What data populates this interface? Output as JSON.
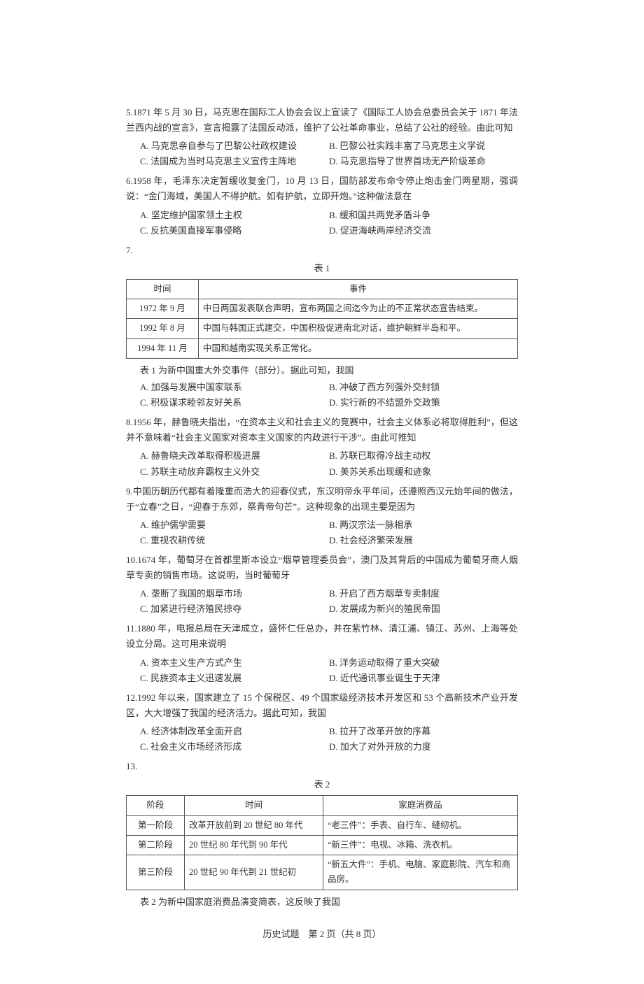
{
  "page": {
    "footer": "历史试题　第 2 页（共 8 页）"
  },
  "questions": [
    {
      "num": "5.",
      "text": "1871 年 5 月 30 日，马克思在国际工人协会会议上宣读了《国际工人协会总委员会关于 1871 年法兰西内战的宣言》，宣言揭露了法国反动派，维护了公社革命事业，总结了公社的经验。由此可知",
      "layout": "two",
      "opts": [
        "A. 马克思亲自参与了巴黎公社政权建设",
        "B. 巴黎公社实践丰富了马克思主义学说",
        "C. 法国成为当时马克思主义宣传主阵地",
        "D. 马克思指导了世界首场无产阶级革命"
      ]
    },
    {
      "num": "6.",
      "text": "1958 年，毛泽东决定暂缓收复金门，10 月 13 日，国防部发布命令停止炮击金门两星期，强调说：“金门海域，美国人不得护航。如有护航，立即开炮。”这种做法意在",
      "layout": "two",
      "opts": [
        "A. 坚定维护国家领土主权",
        "B. 缓和国共两党矛盾斗争",
        "C. 反抗美国直接军事侵略",
        "D. 促进海峡两岸经济交流"
      ]
    },
    {
      "num": "7.",
      "table_caption": "表 1",
      "table_note": "表 1 为新中国重大外交事件（部分）。据此可知，我国",
      "table1": {
        "headers": [
          "时间",
          "事件"
        ],
        "rows": [
          [
            "1972 年 9 月",
            "中日两国发表联合声明，宣布两国之间迄今为止的不正常状态宣告结束。"
          ],
          [
            "1992 年 8 月",
            "中国与韩国正式建交，中国积极促进南北对话，维护朝鲜半岛和平。"
          ],
          [
            "1994 年 11 月",
            "中国和越南实现关系正常化。"
          ]
        ]
      },
      "layout": "two",
      "opts": [
        "A. 加强与发展中国家联系",
        "B. 冲破了西方列强外交封锁",
        "C. 积极谋求睦邻友好关系",
        "D. 实行新的不结盟外交政策"
      ]
    },
    {
      "num": "8.",
      "text": "1956 年，赫鲁晓夫指出，“在资本主义和社会主义的竞赛中，社会主义体系必将取得胜利”，但这并不意味着“社会主义国家对资本主义国家的内政进行干涉”。由此可推知",
      "layout": "two",
      "opts": [
        "A. 赫鲁晓夫改革取得积极进展",
        "B. 苏联已取得冷战主动权",
        "C. 苏联主动放弃霸权主义外交",
        "D. 美苏关系出现缓和迹象"
      ]
    },
    {
      "num": "9.",
      "text": "中国历朝历代都有着隆重而浩大的迎春仪式，东汉明帝永平年间，还遵照西汉元始年间的做法，于“立春”之日，“迎春于东郊，祭青帝句芒”。这种现象的出现主要是因为",
      "layout": "two",
      "opts": [
        "A. 维护儒学需要",
        "B. 两汉宗法一脉相承",
        "C. 重视农耕传统",
        "D. 社会经济繁荣发展"
      ]
    },
    {
      "num": "10.",
      "text": "1674 年，葡萄牙在首都里斯本设立“烟草管理委员会”，澳门及其背后的中国成为葡萄牙商人烟草专卖的销售市场。这说明，当时葡萄牙",
      "layout": "two",
      "opts": [
        "A. 垄断了我国的烟草市场",
        "B. 开启了西方烟草专卖制度",
        "C. 加紧进行经济殖民掠夺",
        "D. 发展成为新兴的殖民帝国"
      ]
    },
    {
      "num": "11.",
      "text": "1880 年，电报总局在天津成立，盛怀仁任总办，并在紫竹林、清江浦、镇江、苏州、上海等处设立分局。这可用来说明",
      "layout": "two",
      "opts": [
        "A. 资本主义生产方式产生",
        "B. 洋务运动取得了重大突破",
        "C. 民族资本主义迅速发展",
        "D. 近代通讯事业诞生于天津"
      ]
    },
    {
      "num": "12.",
      "text": "1992 年以来，国家建立了 15 个保税区、49 个国家级经济技术开发区和 53 个高新技术产业开发区，大大增强了我国的经济活力。据此可知，我国",
      "layout": "two",
      "opts": [
        "A. 经济体制改革全面开启",
        "B. 拉开了改革开放的序幕",
        "C. 社会主义市场经济形成",
        "D. 加大了对外开放的力度"
      ]
    },
    {
      "num": "13.",
      "table_caption": "表 2",
      "table_note": "表 2 为新中国家庭消费品演变简表，这反映了我国",
      "table2": {
        "headers": [
          "阶段",
          "时间",
          "家庭消费品"
        ],
        "rows": [
          [
            "第一阶段",
            "改革开放前到 20 世纪 80 年代",
            "“老三件”：手表、自行车、缝纫机。"
          ],
          [
            "第二阶段",
            "20 世纪 80 年代到 90 年代",
            "“新三件”：电视、冰箱、洗衣机。"
          ],
          [
            "第三阶段",
            "20 世纪 90 年代到 21 世纪初",
            "“新五大件”：手机、电脑、家庭影院、汽车和商品房。"
          ]
        ]
      }
    }
  ]
}
